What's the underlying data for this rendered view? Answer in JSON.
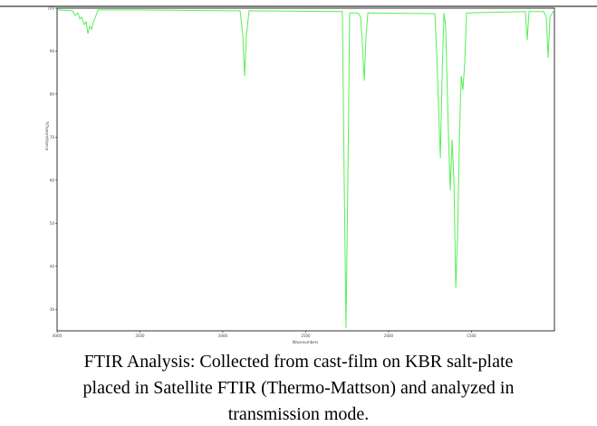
{
  "chart_data": {
    "type": "line",
    "xlabel": "Wavenumbers",
    "ylabel": "%Transmittance",
    "xlim": [
      4000,
      1000
    ],
    "ylim": [
      25,
      100
    ],
    "xticks": [
      4000,
      3500,
      3000,
      2500,
      2000,
      1500
    ],
    "yticks": [
      100,
      90,
      80,
      70,
      60,
      50,
      40,
      30
    ],
    "series": [
      {
        "color": "#55f055",
        "x": [
          4000,
          3907,
          3891,
          3874,
          3863,
          3852,
          3836,
          3825,
          3814,
          3803,
          3792,
          3781,
          3765,
          3754,
          3525,
          2978,
          2896,
          2880,
          2869,
          2858,
          2842,
          2295,
          2279,
          2268,
          2257,
          2246,
          2235,
          2186,
          2169,
          2158,
          2147,
          2136,
          2125,
          1721,
          1710,
          1688,
          1677,
          1666,
          1656,
          1639,
          1628,
          1617,
          1606,
          1595,
          1584,
          1573,
          1562,
          1552,
          1541,
          1530,
          1175,
          1164,
          1153,
          1065,
          1049,
          1038,
          1027,
          1000
        ],
        "values": [
          99.6,
          99.4,
          98.3,
          98.9,
          97.5,
          97.9,
          96.2,
          96.8,
          94.1,
          95.8,
          95.1,
          96.8,
          98.3,
          99.6,
          99.6,
          99.4,
          99.4,
          93.7,
          84.2,
          93.7,
          99.4,
          99.2,
          99.2,
          59.9,
          25.6,
          59.9,
          98.9,
          98.9,
          97.9,
          91.5,
          83.1,
          93.7,
          98.9,
          98.7,
          89.4,
          65.1,
          85.2,
          98.9,
          95.8,
          70.4,
          57.7,
          69.4,
          59.9,
          34.9,
          47.2,
          70.4,
          84.2,
          81.0,
          87.3,
          98.9,
          99.2,
          92.6,
          99.2,
          99.2,
          97.9,
          88.4,
          97.9,
          99.6
        ]
      }
    ],
    "caption": [
      "FTIR Analysis: Collected from cast-film on KBR salt-plate",
      "placed in Satellite FTIR (Thermo-Mattson) and analyzed in",
      "transmission mode."
    ]
  }
}
